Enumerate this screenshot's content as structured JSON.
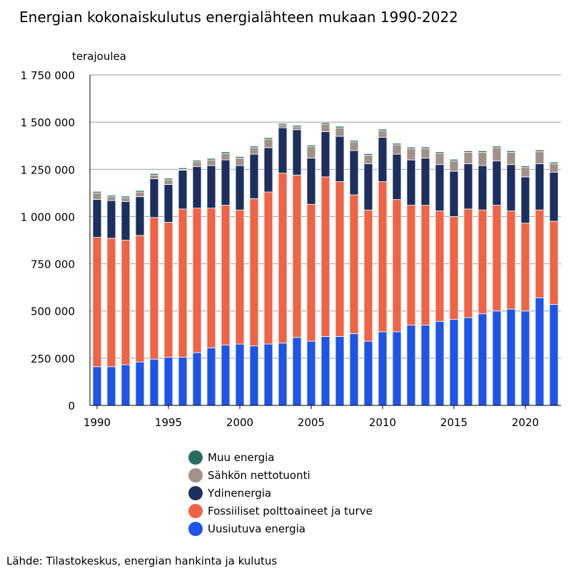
{
  "title": "Energian kokonaiskulutus energialähteen mukaan 1990-2022",
  "ylabel": "terajoulea",
  "source": "Lähde: Tilastokeskus, energian hankinta ja kulutus",
  "chart_data": {
    "type": "bar",
    "stacked": true,
    "title": "Energian kokonaiskulutus energialähteen mukaan 1990-2022",
    "ylabel": "terajoulea",
    "ylim": [
      0,
      1750000
    ],
    "yticks": [
      0,
      250000,
      500000,
      750000,
      1000000,
      1250000,
      1500000,
      1750000
    ],
    "ytick_labels": [
      "0",
      "250 000",
      "500 000",
      "750 000",
      "1 000 000",
      "1 250 000",
      "1 500 000",
      "1 750 000"
    ],
    "xtick_labels": [
      "1990",
      "1995",
      "2000",
      "2005",
      "2010",
      "2015",
      "2020"
    ],
    "grid": true,
    "categories": [
      "1990",
      "1991",
      "1992",
      "1993",
      "1994",
      "1995",
      "1996",
      "1997",
      "1998",
      "1999",
      "2000",
      "2001",
      "2002",
      "2003",
      "2004",
      "2005",
      "2006",
      "2007",
      "2008",
      "2009",
      "2010",
      "2011",
      "2012",
      "2013",
      "2014",
      "2015",
      "2016",
      "2017",
      "2018",
      "2019",
      "2020",
      "2021",
      "2022"
    ],
    "series": [
      {
        "name": "Uusiutuva energia",
        "color": "#1f55e6",
        "values": [
          205000,
          205000,
          215000,
          230000,
          245000,
          255000,
          255000,
          280000,
          305000,
          320000,
          325000,
          315000,
          325000,
          330000,
          360000,
          340000,
          365000,
          365000,
          380000,
          340000,
          390000,
          390000,
          425000,
          425000,
          445000,
          455000,
          465000,
          485000,
          500000,
          510000,
          500000,
          570000,
          535000
        ]
      },
      {
        "name": "Fossiiliset polttoaineet ja turve",
        "color": "#ef6347",
        "values": [
          685000,
          680000,
          660000,
          670000,
          750000,
          715000,
          785000,
          765000,
          740000,
          740000,
          710000,
          780000,
          805000,
          900000,
          860000,
          725000,
          845000,
          820000,
          735000,
          695000,
          795000,
          700000,
          635000,
          635000,
          585000,
          545000,
          575000,
          550000,
          560000,
          520000,
          465000,
          465000,
          440000
        ]
      },
      {
        "name": "Ydinenergia",
        "color": "#1c2f5e",
        "values": [
          200000,
          200000,
          205000,
          205000,
          205000,
          200000,
          205000,
          220000,
          225000,
          240000,
          235000,
          235000,
          235000,
          240000,
          240000,
          245000,
          240000,
          240000,
          235000,
          245000,
          235000,
          240000,
          240000,
          250000,
          245000,
          240000,
          240000,
          235000,
          235000,
          245000,
          245000,
          245000,
          260000
        ]
      },
      {
        "name": "Sähkön nettotuonti",
        "color": "#a09288",
        "values": [
          35000,
          20000,
          20000,
          25000,
          20000,
          25000,
          5000,
          25000,
          30000,
          35000,
          40000,
          35000,
          45000,
          15000,
          15000,
          60000,
          40000,
          45000,
          45000,
          45000,
          35000,
          50000,
          60000,
          50000,
          60000,
          55000,
          60000,
          70000,
          70000,
          65000,
          50000,
          65000,
          45000
        ]
      },
      {
        "name": "Muu energia",
        "color": "#2a6c62",
        "values": [
          8000,
          8000,
          8000,
          8000,
          8000,
          8000,
          8000,
          8000,
          8000,
          8000,
          8000,
          8000,
          8000,
          8000,
          8000,
          8000,
          8000,
          8000,
          8000,
          8000,
          8000,
          8000,
          8000,
          8000,
          8000,
          8000,
          8000,
          8000,
          8000,
          8000,
          8000,
          8000,
          8000
        ]
      }
    ],
    "legend_position": "bottom"
  }
}
